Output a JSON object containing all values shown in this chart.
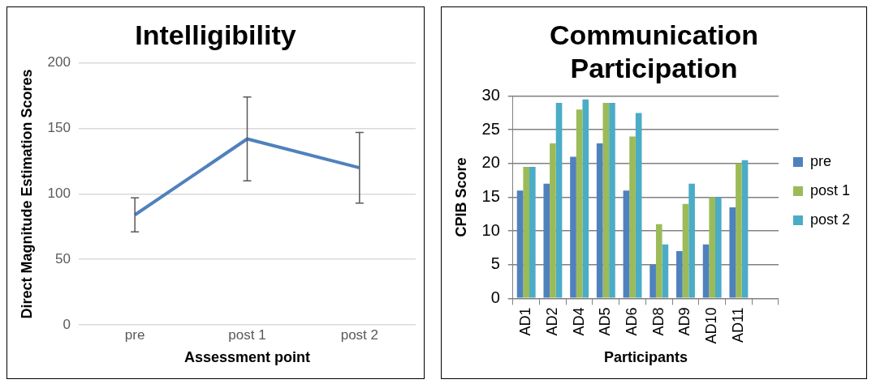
{
  "chart_data": [
    {
      "type": "line",
      "title": "Intelligibility",
      "xlabel": "Assessment point",
      "ylabel": "Direct Magnitude Estimation Scores",
      "categories": [
        "pre",
        "post 1",
        "post 2"
      ],
      "series": [
        {
          "color": "#4f81bd",
          "values": [
            84,
            142,
            120
          ],
          "errors": [
            13,
            32,
            27
          ]
        }
      ],
      "ylim": [
        0,
        200
      ],
      "yticks": [
        0,
        50,
        100,
        150,
        200
      ],
      "grid": "y",
      "legend": false,
      "marker": "none",
      "line_style": "solid"
    },
    {
      "type": "bar",
      "title": "Communication Participation",
      "xlabel": "Participants",
      "ylabel": "CPIB Score",
      "categories": [
        "AD1",
        "AD2",
        "AD4",
        "AD5",
        "AD6",
        "AD8",
        "AD9",
        "AD10",
        "AD11",
        null
      ],
      "series": [
        {
          "name": "pre",
          "color": "#4f81bd",
          "values": [
            16,
            17,
            21,
            23,
            16,
            5,
            7,
            8,
            13.5,
            null
          ]
        },
        {
          "name": "post 1",
          "color": "#9bbb59",
          "values": [
            19.5,
            23,
            28,
            29,
            24,
            11,
            14,
            15,
            20,
            null
          ]
        },
        {
          "name": "post 2",
          "color": "#4bacc6",
          "values": [
            19.5,
            29,
            29.5,
            29,
            27.5,
            8,
            17,
            15,
            20.5,
            null
          ]
        }
      ],
      "ylim": [
        0,
        30
      ],
      "yticks": [
        0,
        5,
        10,
        15,
        20,
        25,
        30
      ],
      "grid": "y",
      "legend": "right"
    }
  ]
}
